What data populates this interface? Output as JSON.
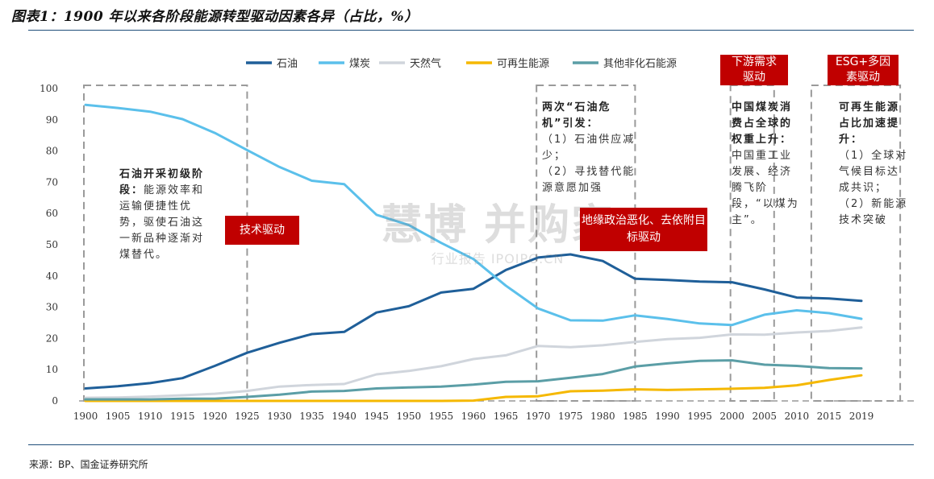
{
  "title": "图表1：1900 年以来各阶段能源转型驱动因素各异（占比，%）",
  "source": "来源：BP、国金证券研究所",
  "watermark": {
    "big": "慧博 并购家",
    "small": "行业报告 IPOIPO.CN"
  },
  "annotations": {
    "a1_bold": "石油开采初级阶段：",
    "a1_text": "能源效率和运输便捷性优势，驱使石油这一新品种逐渐对煤替代。",
    "a2_bold": "两次“石油危机”引发：",
    "a2_l1": "（1）石油供应减少；",
    "a2_l2": "（2）寻找替代能源意愿加强",
    "a3_bold": "中国煤炭消费占全球的权重上升：",
    "a3_text": "中国重工业发展、经济腾飞阶段，“以煤为主”。",
    "a4_bold": "可再生能源占比加速提升：",
    "a4_l1": "（1）全球对气候目标达成共识；",
    "a4_l2": "（2）新能源技术突破"
  },
  "tags": {
    "tech": "技术驱动",
    "geo": "地缘政治恶化、去依附目标驱动",
    "down": "下游需求驱动",
    "esg": "ESG+多因素驱动"
  },
  "colors": {
    "oil": "#1f5f99",
    "coal": "#5bc0eb",
    "gas": "#d0d5dc",
    "renew": "#f5b800",
    "other": "#5b9ea6",
    "tag": "#c00000",
    "box": "#999999"
  },
  "chart_data": {
    "type": "line",
    "categories": [
      "1900",
      "1905",
      "1910",
      "1915",
      "1920",
      "1925",
      "1930",
      "1935",
      "1940",
      "1945",
      "1950",
      "1955",
      "1960",
      "1965",
      "1970",
      "1975",
      "1980",
      "1985",
      "1990",
      "1995",
      "2000",
      "2005",
      "2010",
      "2015",
      "2019"
    ],
    "ylim": [
      0,
      100
    ],
    "yticks": [
      0,
      10,
      20,
      30,
      40,
      50,
      60,
      70,
      80,
      90,
      100
    ],
    "legend_position": "top",
    "series": [
      {
        "name": "石油",
        "color": "#1f5f99",
        "values": [
          4,
          4.7,
          5.7,
          7.3,
          11.2,
          15.4,
          18.6,
          21.4,
          22.1,
          28.3,
          30.3,
          34.7,
          35.9,
          41.9,
          45.9,
          46.9,
          44.8,
          39.1,
          38.7,
          38.2,
          38,
          35.7,
          33.1,
          32.8,
          32
        ]
      },
      {
        "name": "煤炭",
        "color": "#5bc0eb",
        "values": [
          94.8,
          93.8,
          92.6,
          90.2,
          85.8,
          80.3,
          74.9,
          70.5,
          69.4,
          59.6,
          56.3,
          50.6,
          45.4,
          36.9,
          29.6,
          25.8,
          25.7,
          27.4,
          26.2,
          24.8,
          24.3,
          27.6,
          29,
          28.1,
          26.3
        ]
      },
      {
        "name": "天然气",
        "color": "#d0d5dc",
        "values": [
          1,
          1.1,
          1.4,
          1.8,
          2.3,
          3.2,
          4.6,
          5.1,
          5.4,
          8.5,
          9.6,
          11.1,
          13.4,
          14.6,
          17.6,
          17.2,
          17.8,
          18.9,
          19.8,
          20.2,
          21.3,
          21.2,
          21.9,
          22.4,
          23.5
        ]
      },
      {
        "name": "可再生能源",
        "color": "#f5b800",
        "values": [
          0,
          0,
          0,
          0,
          0,
          0,
          0,
          0,
          0,
          0,
          0,
          0,
          0.1,
          1.3,
          1.5,
          3.1,
          3.3,
          3.7,
          3.5,
          3.7,
          3.9,
          4.2,
          5,
          6.7,
          8.2
        ]
      },
      {
        "name": "其他非化石能源",
        "color": "#5b9ea6",
        "values": [
          0.5,
          0.5,
          0.5,
          0.7,
          0.7,
          1.3,
          2,
          3,
          3.2,
          4,
          4.3,
          4.6,
          5.2,
          6.1,
          6.3,
          7.4,
          8.6,
          11,
          12,
          12.8,
          13,
          11.6,
          11.2,
          10.5,
          10.4
        ]
      }
    ]
  }
}
